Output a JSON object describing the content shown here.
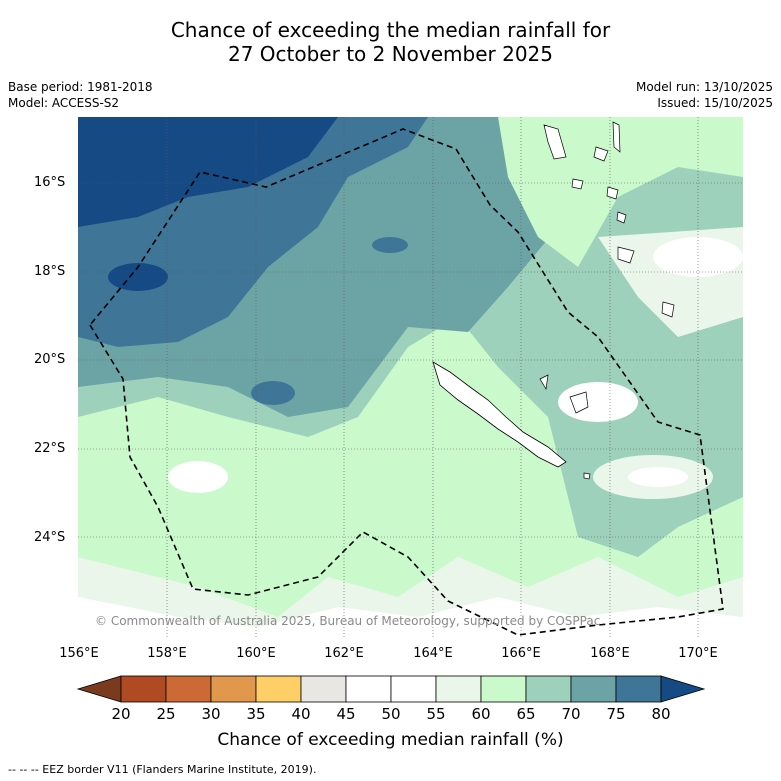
{
  "title": {
    "line1": "Chance of exceeding the median rainfall for",
    "line2": "27 October to 2 November 2025"
  },
  "meta_left": {
    "base_period": "Base period: 1981-2018",
    "model": "Model: ACCESS-S2"
  },
  "meta_right": {
    "model_run": "Model run: 13/10/2025",
    "issued": "Issued: 15/10/2025"
  },
  "map": {
    "lat_labels": [
      "16°S",
      "18°S",
      "20°S",
      "22°S",
      "24°S"
    ],
    "lon_labels": [
      "156°E",
      "158°E",
      "160°E",
      "162°E",
      "164°E",
      "166°E",
      "168°E",
      "170°E"
    ],
    "copyright": "© Commonwealth of Australia 2025, Bureau of Meteorology, supported by COSPPac"
  },
  "colorbar": {
    "ticks": [
      "20",
      "25",
      "30",
      "35",
      "40",
      "45",
      "50",
      "55",
      "60",
      "65",
      "70",
      "75",
      "80"
    ],
    "colors": [
      "#7a3a1d",
      "#b04a23",
      "#cc6a35",
      "#e2984c",
      "#fdcf66",
      "#e9e7e4",
      "#ffffff",
      "#ffffff",
      "#eaf6ea",
      "#caf9cb",
      "#9dd1bb",
      "#6ca4a6",
      "#3f7698",
      "#154a84"
    ],
    "label": "Chance of exceeding median rainfall (%)"
  },
  "footer": "-- -- -- EEZ border V11 (Flanders Marine Institute, 2019)."
}
